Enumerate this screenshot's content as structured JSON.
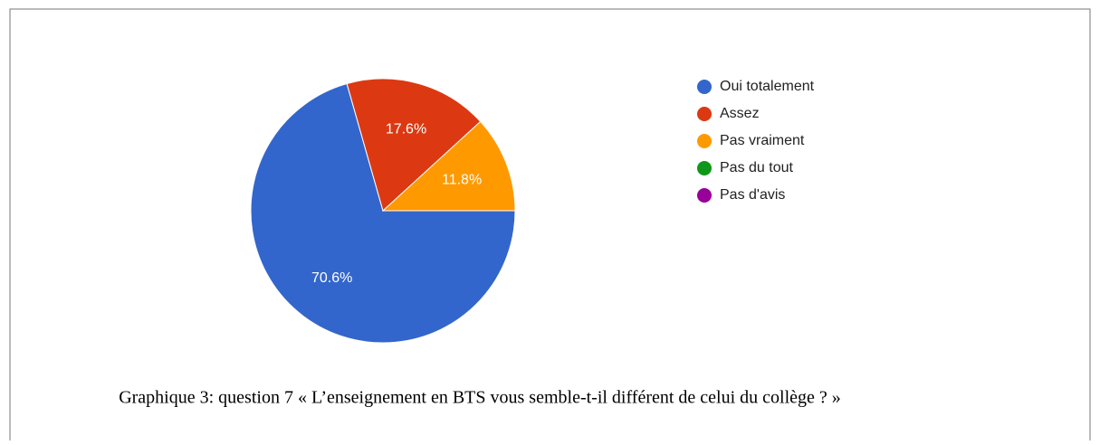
{
  "chart_data": {
    "type": "pie",
    "categories": [
      "Oui totalement",
      "Assez",
      "Pas vraiment",
      "Pas du tout",
      "Pas d'avis"
    ],
    "values": [
      70.6,
      17.6,
      11.8,
      0,
      0
    ],
    "value_labels": [
      "70.6%",
      "17.6%",
      "11.8%",
      null,
      null
    ],
    "colors": [
      "#3366cc",
      "#dc3912",
      "#ff9900",
      "#109618",
      "#990099"
    ],
    "legend": "right",
    "caption": "Graphique 3: question 7 « L’enseignement en BTS vous semble-t-il différent de celui du collège ? »"
  }
}
